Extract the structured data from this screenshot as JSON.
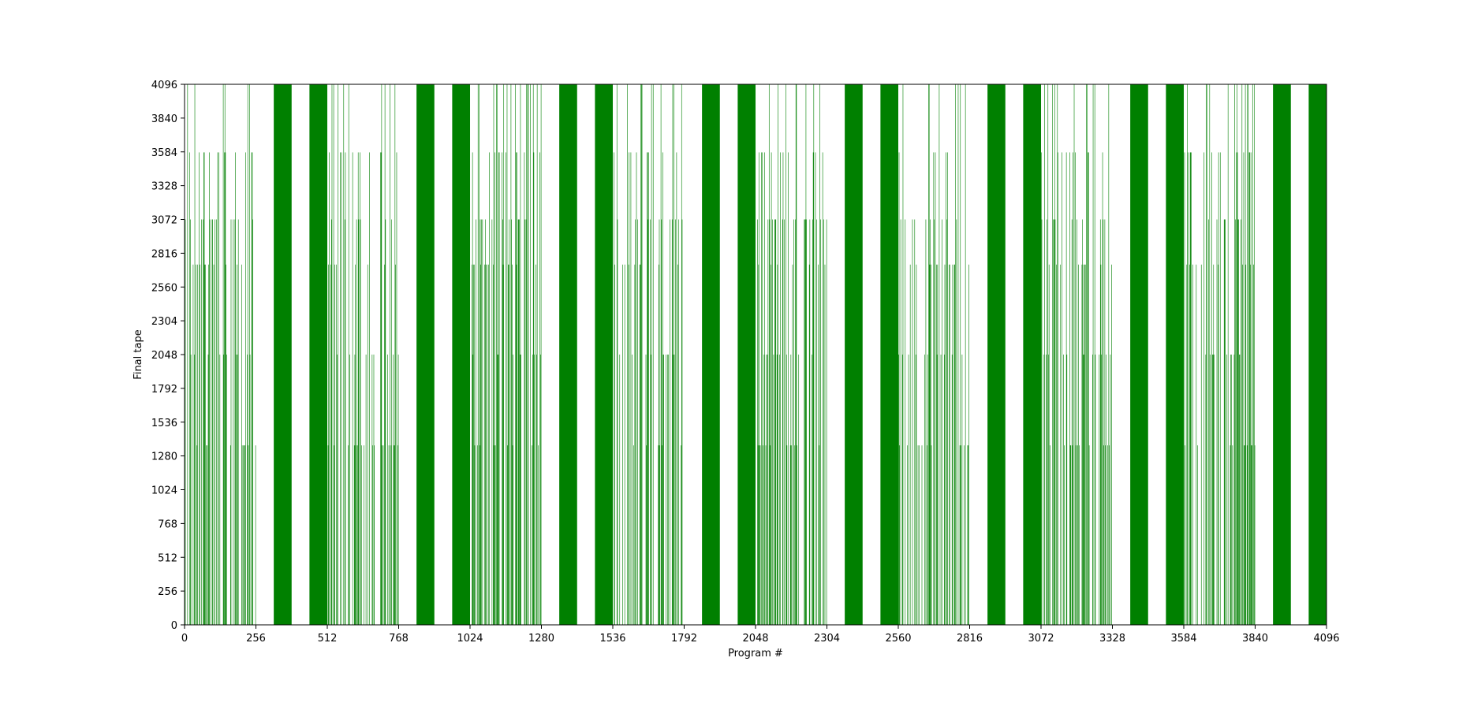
{
  "chart_data": {
    "type": "bar",
    "title": "",
    "xlabel": "Program #",
    "ylabel": "Final tape",
    "xlim": [
      0,
      4096
    ],
    "ylim": [
      0,
      4096
    ],
    "xticks": [
      0,
      256,
      512,
      768,
      1024,
      1280,
      1536,
      1792,
      2048,
      2304,
      2560,
      2816,
      3072,
      3328,
      3584,
      3840,
      4096
    ],
    "xtick_labels": [
      "0",
      "256",
      "512",
      "768",
      "1024",
      "1280",
      "1536",
      "1792",
      "2048",
      "2304",
      "2560",
      "2816",
      "3072",
      "3328",
      "3584",
      "3840",
      "4096"
    ],
    "yticks": [
      0,
      256,
      512,
      768,
      1024,
      1280,
      1536,
      1792,
      2048,
      2304,
      2560,
      2816,
      3072,
      3328,
      3584,
      3840,
      4096
    ],
    "ytick_labels": [
      "0",
      "256",
      "512",
      "768",
      "1024",
      "1280",
      "1536",
      "1792",
      "2048",
      "2304",
      "2560",
      "2816",
      "3072",
      "3328",
      "3584",
      "3840",
      "4096"
    ],
    "grid": false,
    "legend": "none",
    "bar_color": "#008000",
    "solid_blocks": [
      {
        "x_start": 320,
        "x_end": 384,
        "value": 4096
      },
      {
        "x_start": 448,
        "x_end": 512,
        "value": 4096
      },
      {
        "x_start": 832,
        "x_end": 896,
        "value": 4096
      },
      {
        "x_start": 960,
        "x_end": 1024,
        "value": 4096
      },
      {
        "x_start": 1344,
        "x_end": 1408,
        "value": 4096
      },
      {
        "x_start": 1472,
        "x_end": 1536,
        "value": 4096
      },
      {
        "x_start": 1856,
        "x_end": 1920,
        "value": 4096
      },
      {
        "x_start": 1984,
        "x_end": 2048,
        "value": 4096
      },
      {
        "x_start": 2368,
        "x_end": 2432,
        "value": 4096
      },
      {
        "x_start": 2496,
        "x_end": 2560,
        "value": 4096
      },
      {
        "x_start": 2880,
        "x_end": 2944,
        "value": 4096
      },
      {
        "x_start": 3008,
        "x_end": 3072,
        "value": 4096
      },
      {
        "x_start": 3392,
        "x_end": 3456,
        "value": 4096
      },
      {
        "x_start": 3520,
        "x_end": 3584,
        "value": 4096
      },
      {
        "x_start": 3904,
        "x_end": 3968,
        "value": 4096
      },
      {
        "x_start": 4032,
        "x_end": 4096,
        "value": 4096
      }
    ],
    "dense_regions": [
      {
        "x_start": 0,
        "x_end": 256
      },
      {
        "x_start": 512,
        "x_end": 768
      },
      {
        "x_start": 1024,
        "x_end": 1280
      },
      {
        "x_start": 1536,
        "x_end": 1792
      },
      {
        "x_start": 2048,
        "x_end": 2304
      },
      {
        "x_start": 2560,
        "x_end": 2816
      },
      {
        "x_start": 3072,
        "x_end": 3328
      },
      {
        "x_start": 3584,
        "x_end": 3840
      }
    ],
    "dense_bar_levels": [
      1360,
      2048,
      2730,
      3072,
      3580,
      4096
    ],
    "dense_bar_fill_fraction": 0.5
  }
}
